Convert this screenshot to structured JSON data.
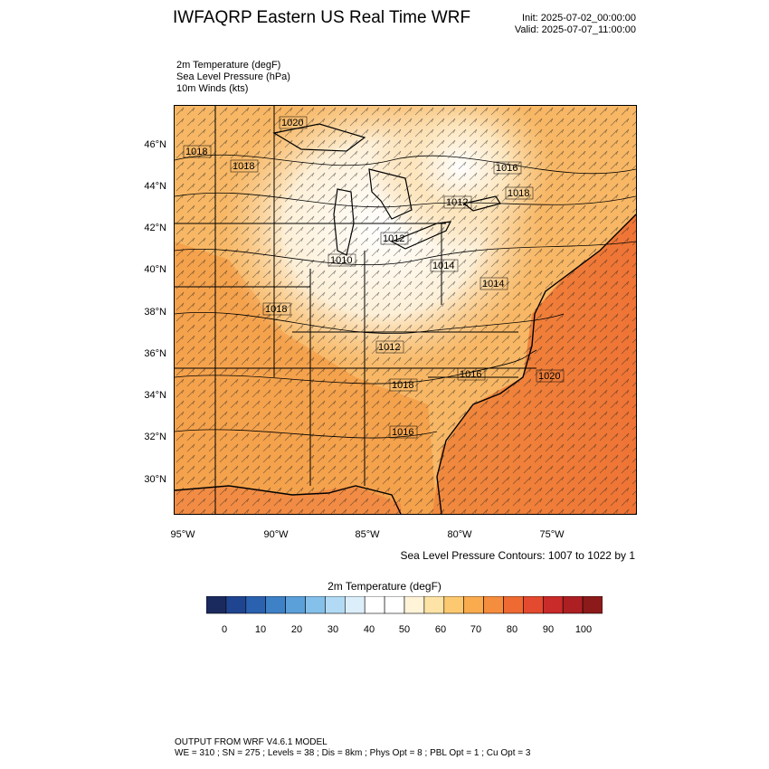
{
  "header": {
    "title": "IWFAQRP Eastern US Real Time WRF",
    "init": "Init: 2025-07-02_00:00:00",
    "valid": "Valid: 2025-07-07_11:00:00"
  },
  "fields": [
    "2m Temperature   (degF)",
    "Sea Level Pressure   (hPa)",
    "10m Winds   (kts)"
  ],
  "map": {
    "lat_labels": [
      "46°N",
      "44°N",
      "42°N",
      "40°N",
      "38°N",
      "36°N",
      "34°N",
      "32°N",
      "30°N"
    ],
    "lon_labels": [
      "95°W",
      "90°W",
      "85°W",
      "80°W",
      "75°W"
    ],
    "pressure_labels": [
      "1020",
      "1018",
      "1018",
      "1012",
      "1010",
      "1012",
      "1016",
      "1018",
      "1014",
      "1014",
      "1018",
      "1012",
      "1016",
      "1020",
      "1018",
      "1016"
    ],
    "contour_note": "Sea Level Pressure Contours: 1007 to 1022 by 1"
  },
  "colorbar": {
    "title": "2m Temperature  (degF)",
    "ticks": [
      "0",
      "10",
      "20",
      "30",
      "40",
      "50",
      "60",
      "70",
      "80",
      "90",
      "100"
    ],
    "colors": [
      "#1b2a5e",
      "#1f4590",
      "#2b62b0",
      "#3f81c7",
      "#5ca0da",
      "#85c0ea",
      "#b2daf4",
      "#dceef9",
      "#ffffff",
      "#ffffff",
      "#fff3d8",
      "#fde3a6",
      "#fcc970",
      "#f9ab4e",
      "#f58d3e",
      "#ee6a32",
      "#e34a2f",
      "#c92a2a",
      "#ad1f23",
      "#8c1a1a"
    ]
  },
  "footer": {
    "line1": "OUTPUT FROM WRF V4.6.1 MODEL",
    "line2": "WE = 310 ; SN = 275 ; Levels = 38 ; Dis = 8km ; Phys Opt = 8 ; PBL Opt = 1 ; Cu Opt = 3"
  }
}
